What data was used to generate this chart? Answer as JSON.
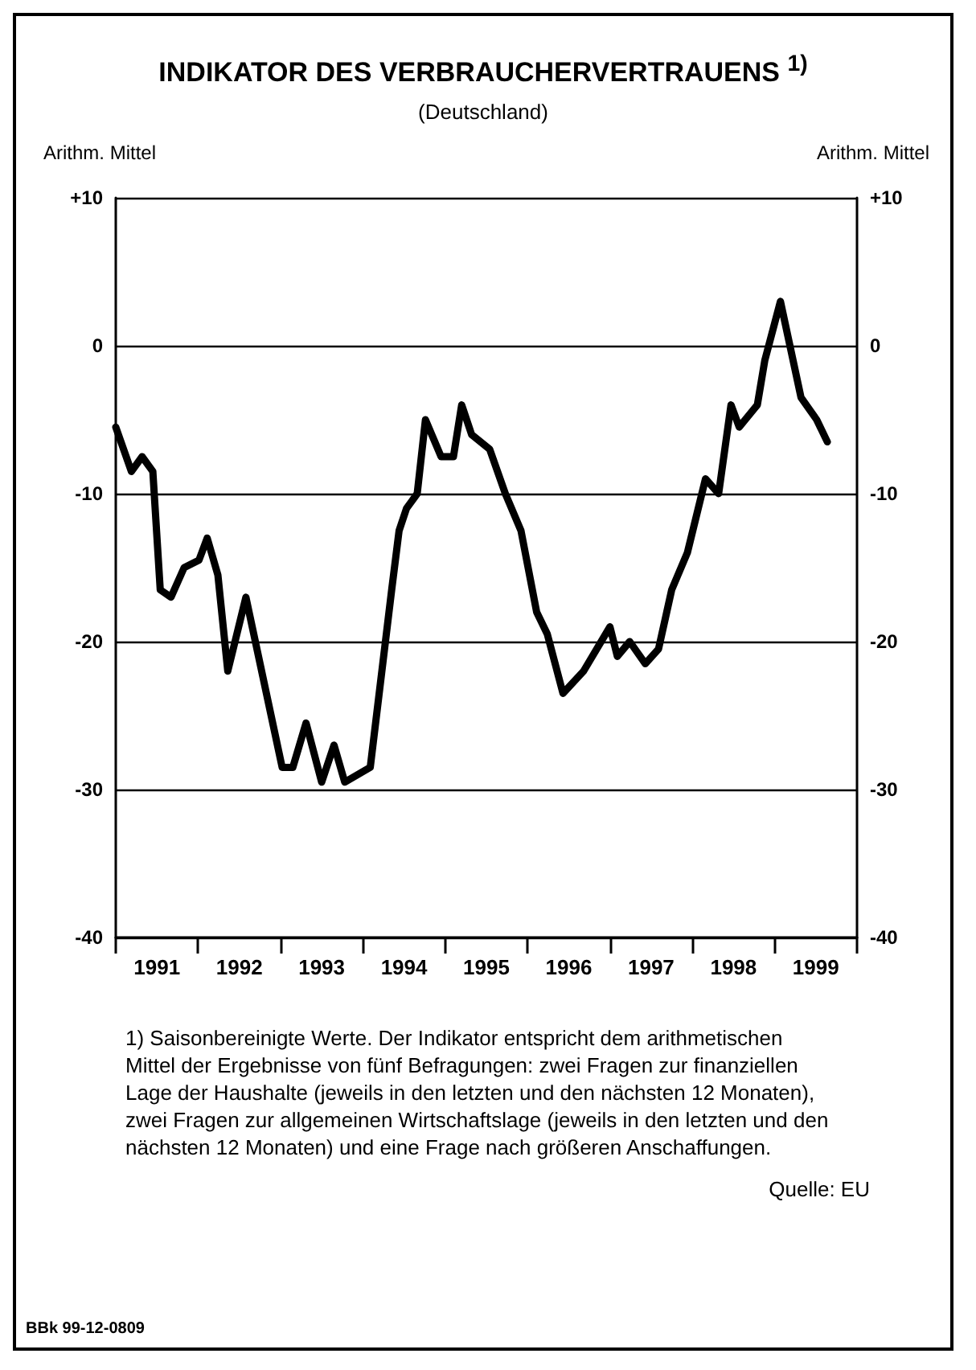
{
  "chart_data": {
    "type": "line",
    "title": "INDIKATOR DES VERBRAUCHERVERTRAUENS $^{1)}$",
    "subtitle": "(Deutschland)",
    "ylabel": "Arithm. Mittel",
    "y2label": "Arithm. Mittel",
    "x": [
      1991.0,
      1991.19,
      1991.32,
      1991.45,
      1991.54,
      1991.67,
      1991.83,
      1992.01,
      1992.11,
      1992.24,
      1992.36,
      1992.58,
      1993.02,
      1993.15,
      1993.31,
      1993.5,
      1993.65,
      1993.78,
      1994.09,
      1994.35,
      1994.44,
      1994.53,
      1994.66,
      1994.76,
      1994.95,
      1995.1,
      1995.2,
      1995.32,
      1995.54,
      1995.73,
      1995.92,
      1996.11,
      1996.24,
      1996.43,
      1996.68,
      1997.0,
      1997.09,
      1997.24,
      1997.43,
      1997.59,
      1997.75,
      1997.94,
      1998.16,
      1998.32,
      1998.47,
      1998.57,
      1998.79,
      1998.88,
      1999.07,
      1999.32,
      1999.51,
      1999.64
    ],
    "series": [
      {
        "color": "#000000",
        "values": [
          -5.5,
          -8.5,
          -7.5,
          -8.5,
          -16.5,
          -17,
          -15,
          -14.5,
          -13,
          -15.5,
          -22,
          -17,
          -28.5,
          -28.5,
          -25.5,
          -29.5,
          -27,
          -29.5,
          -28.5,
          -16.5,
          -12.5,
          -11,
          -10,
          -5,
          -7.5,
          -7.5,
          -4,
          -6,
          -7,
          -10,
          -12.5,
          -18,
          -19.5,
          -23.5,
          -22,
          -19,
          -21,
          -20,
          -21.5,
          -20.5,
          -16.5,
          -14,
          -9,
          -10,
          -4,
          -5.5,
          -4,
          -1,
          3,
          -3.5,
          -5,
          -6.5
        ]
      }
    ],
    "xlim": [
      1991,
      2000
    ],
    "xticks": [
      {
        "value": 1991,
        "label": null
      },
      {
        "value": 1991.5,
        "label": "1991"
      },
      {
        "value": 1992,
        "label": null
      },
      {
        "value": 1992.5,
        "label": "1992"
      },
      {
        "value": 1993,
        "label": null
      },
      {
        "value": 1993.5,
        "label": "1993"
      },
      {
        "value": 1994,
        "label": null
      },
      {
        "value": 1994.5,
        "label": "1994"
      },
      {
        "value": 1995,
        "label": null
      },
      {
        "value": 1995.5,
        "label": "1995"
      },
      {
        "value": 1996,
        "label": null
      },
      {
        "value": 1996.5,
        "label": "1996"
      },
      {
        "value": 1997,
        "label": null
      },
      {
        "value": 1997.5,
        "label": "1997"
      },
      {
        "value": 1998,
        "label": null
      },
      {
        "value": 1998.5,
        "label": "1998"
      },
      {
        "value": 1999,
        "label": null
      },
      {
        "value": 1999.5,
        "label": "1999"
      },
      {
        "value": 2000,
        "label": null
      }
    ],
    "ylim": [
      -40,
      10
    ],
    "yticks": [
      {
        "value": 10,
        "label": "+10"
      },
      0,
      -10,
      -20,
      -30,
      -40
    ],
    "y2lim": [
      -40,
      10
    ],
    "y2ticks": [
      {
        "value": 10,
        "label": "+10"
      },
      0,
      -10,
      -20,
      -30,
      -40
    ],
    "grid": "y",
    "line_style": "solid",
    "annotations": [
      "1) Saisonbereinigte Werte. Der Indikator entspricht dem arithmetischen Mittel der Ergebnisse von fünf Befragungen: zwei Fragen zur finanziellen Lage der Haushalte (jeweils in den letzten und den nächsten 12 Monaten), zwei Fragen zur allgemeinen Wirtschaftslage (jeweils in den letzten und den nächsten 12 Monaten) und eine Frage nach größeren Anschaffungen.",
      "Quelle: EU",
      "BBk 99-12-0809"
    ]
  }
}
